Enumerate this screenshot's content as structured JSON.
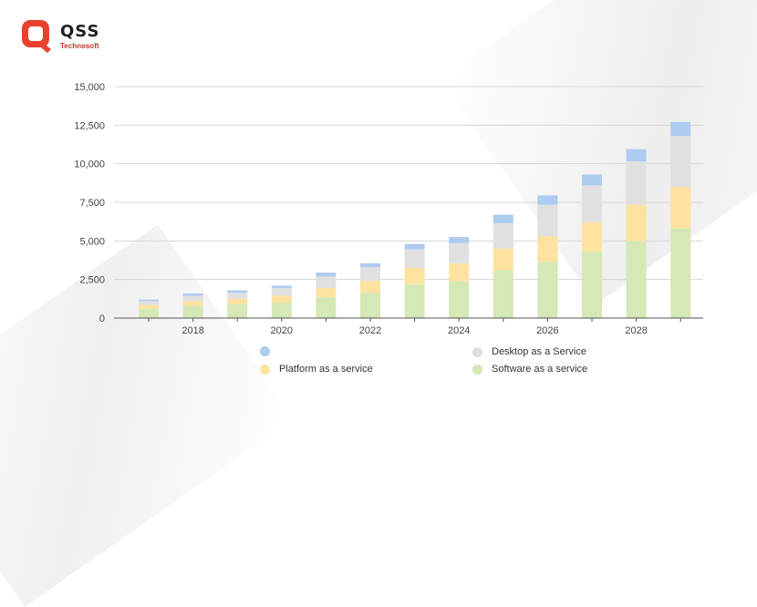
{
  "brand": {
    "name": "QSS",
    "subtitle": "Technosoft",
    "color": "#e8412c"
  },
  "chart_data": {
    "type": "bar",
    "stacked": true,
    "categories": [
      "2017",
      "2018",
      "2019",
      "2020",
      "2021",
      "2022",
      "2023",
      "2024",
      "2025",
      "2026",
      "2027",
      "2028",
      "2029"
    ],
    "x_tick_labels": [
      "",
      "2018",
      "",
      "2020",
      "",
      "2022",
      "",
      "2024",
      "",
      "2026",
      "",
      "2028",
      ""
    ],
    "ylim": [
      0,
      15000
    ],
    "yticks": [
      0,
      2500,
      5000,
      7500,
      10000,
      12500,
      15000
    ],
    "ytick_labels": [
      "0",
      "2,500",
      "5,000",
      "7,500",
      "10,000",
      "12,500",
      "15,000"
    ],
    "grid": true,
    "legend_position": "bottom",
    "series": [
      {
        "name": "Software as a service",
        "color": "#d5e8b5",
        "values": [
          600,
          800,
          900,
          1000,
          1350,
          1650,
          2200,
          2400,
          3100,
          3650,
          4300,
          5000,
          5800
        ]
      },
      {
        "name": "Platform as a service",
        "color": "#fde2a0",
        "values": [
          250,
          300,
          350,
          450,
          600,
          750,
          1050,
          1150,
          1400,
          1650,
          1900,
          2350,
          2700
        ]
      },
      {
        "name": "Desktop as a Service",
        "color": "#e0e0e0",
        "values": [
          250,
          350,
          400,
          500,
          750,
          900,
          1200,
          1300,
          1650,
          2050,
          2400,
          2800,
          3300
        ]
      },
      {
        "name": "",
        "color": "#aecbf0",
        "values": [
          100,
          150,
          150,
          150,
          250,
          250,
          350,
          400,
          550,
          600,
          700,
          800,
          900
        ]
      }
    ]
  }
}
